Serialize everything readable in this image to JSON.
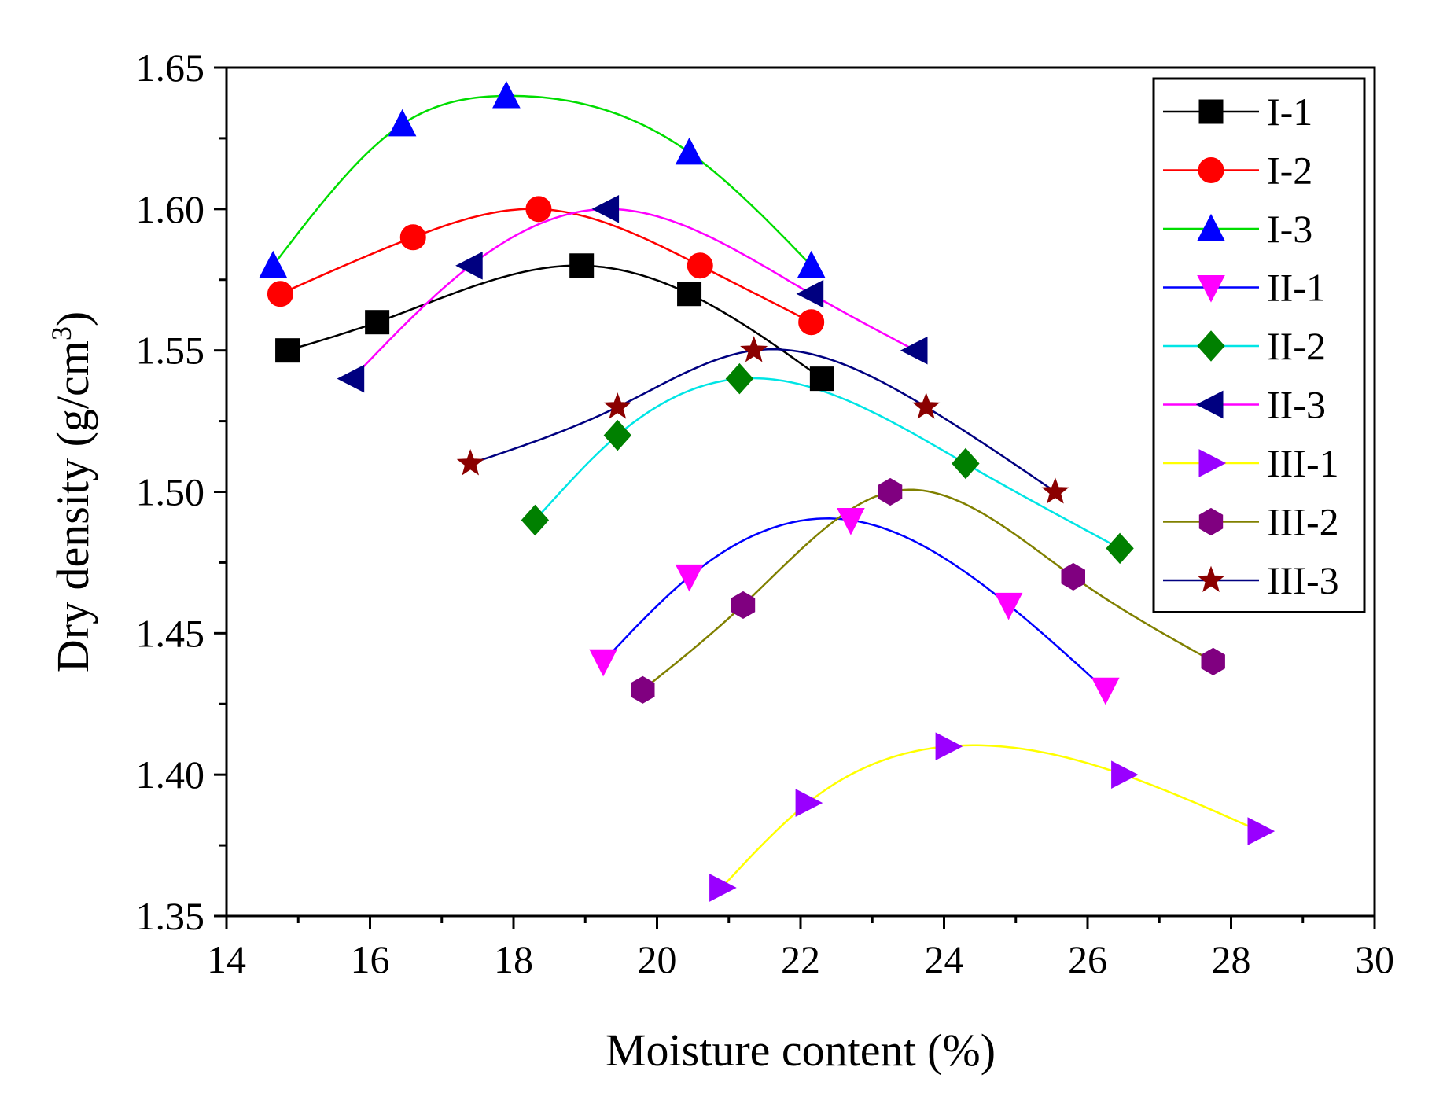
{
  "chart_data": {
    "type": "line",
    "title": "",
    "xlabel": "Moisture content (%)",
    "ylabel_main": "Dry density (g/cm",
    "ylabel_sup": "3",
    "ylabel_close": ")",
    "xlim": [
      14,
      30
    ],
    "ylim": [
      1.35,
      1.65
    ],
    "x_ticks": [
      14,
      16,
      18,
      20,
      22,
      24,
      26,
      28,
      30
    ],
    "x_tick_labels": [
      "14",
      "16",
      "18",
      "20",
      "22",
      "24",
      "26",
      "28",
      "30"
    ],
    "y_ticks": [
      1.35,
      1.4,
      1.45,
      1.5,
      1.55,
      1.6,
      1.65
    ],
    "y_tick_labels": [
      "1.35",
      "1.40",
      "1.45",
      "1.50",
      "1.55",
      "1.60",
      "1.65"
    ],
    "grid": false,
    "legend_position": "top-right",
    "series": [
      {
        "name": "I-1",
        "color": "#000000",
        "marker": "square",
        "x": [
          14.85,
          16.1,
          18.95,
          20.45,
          22.3
        ],
        "y": [
          1.55,
          1.56,
          1.58,
          1.57,
          1.54
        ]
      },
      {
        "name": "I-2",
        "color": "#ff0000",
        "marker": "circle",
        "x": [
          14.75,
          16.6,
          18.35,
          20.6,
          22.15
        ],
        "y": [
          1.57,
          1.59,
          1.6,
          1.58,
          1.56
        ]
      },
      {
        "name": "I-3",
        "color": "#00dd00",
        "marker_color": "#0000ff",
        "marker": "triangle-up",
        "x": [
          14.65,
          16.45,
          17.9,
          20.45,
          22.15
        ],
        "y": [
          1.58,
          1.63,
          1.64,
          1.62,
          1.58
        ]
      },
      {
        "name": "II-1",
        "color": "#0000ff",
        "marker_color": "#ff00ff",
        "marker": "triangle-down",
        "x": [
          19.25,
          20.45,
          22.7,
          24.9,
          26.25
        ],
        "y": [
          1.44,
          1.47,
          1.49,
          1.46,
          1.43
        ]
      },
      {
        "name": "II-2",
        "color": "#00e5e5",
        "marker_color": "#008000",
        "marker": "diamond",
        "x": [
          18.3,
          19.45,
          21.15,
          24.3,
          26.45
        ],
        "y": [
          1.49,
          1.52,
          1.54,
          1.51,
          1.48
        ]
      },
      {
        "name": "II-3",
        "color": "#ff00ff",
        "marker_color": "#000080",
        "marker": "triangle-left",
        "x": [
          15.75,
          17.4,
          19.3,
          22.15,
          23.6
        ],
        "y": [
          1.54,
          1.58,
          1.6,
          1.57,
          1.55
        ]
      },
      {
        "name": "III-1",
        "color": "#ffff00",
        "marker_color": "#9900ff",
        "marker": "triangle-right",
        "x": [
          20.9,
          22.1,
          24.05,
          26.5,
          28.4
        ],
        "y": [
          1.36,
          1.39,
          1.41,
          1.4,
          1.38
        ]
      },
      {
        "name": "III-2",
        "color": "#808000",
        "marker_color": "#800080",
        "marker": "hexagon",
        "x": [
          19.8,
          21.2,
          23.25,
          25.8,
          27.75
        ],
        "y": [
          1.43,
          1.46,
          1.5,
          1.47,
          1.44
        ]
      },
      {
        "name": "III-3",
        "color": "#000080",
        "marker_color": "#8b0000",
        "marker": "star",
        "x": [
          17.4,
          19.45,
          21.35,
          23.75,
          25.55
        ],
        "y": [
          1.51,
          1.53,
          1.55,
          1.53,
          1.5
        ]
      }
    ]
  }
}
